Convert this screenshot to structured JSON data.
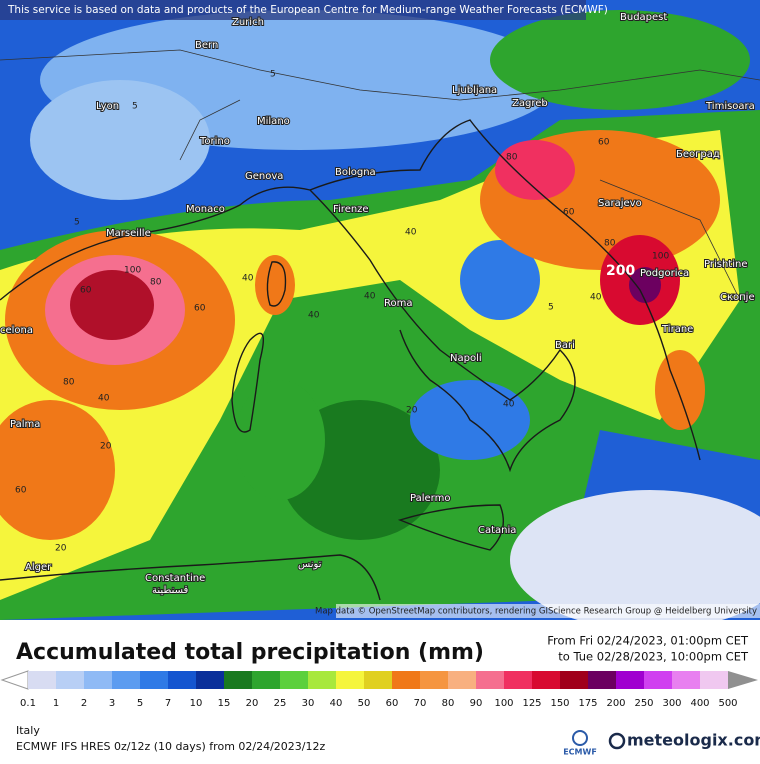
{
  "notice": "This service is based on data and products of the European Centre for Medium-range Weather Forecasts (ECMWF)",
  "map": {
    "cities": [
      "Zurich",
      "Budapest",
      "Bern",
      "Lyon",
      "Milano",
      "Ljubljana",
      "Zagreb",
      "Timisoara",
      "Torino",
      "Genova",
      "Bologna",
      "Београд",
      "Sarajevo",
      "Monaco",
      "Firenze",
      "Marseille",
      "Prishtine",
      "Podgorica",
      "Скопје",
      "Roma",
      "Tirane",
      "celona",
      "Napoli",
      "Bari",
      "Palma",
      "Palermo",
      "Catania",
      "Alger",
      "Constantine",
      "قسنطينة",
      "تونس"
    ],
    "contour_labels": [
      "200",
      "100",
      "80",
      "60",
      "80",
      "60",
      "40",
      "40",
      "60",
      "40",
      "40",
      "40",
      "80",
      "60",
      "60",
      "80",
      "100",
      "40",
      "20",
      "40",
      "5",
      "20",
      "20",
      "5",
      "5",
      "5"
    ],
    "attribution": "Map data © OpenStreetMap contributors, rendering GIScience Research Group @ Heidelberg University"
  },
  "title": "Accumulated total precipitation (mm)",
  "period": {
    "from": "From Fri 02/24/2023, 01:00pm CET",
    "to": "to Tue 02/28/2023, 10:00pm CET"
  },
  "legend": {
    "labels": [
      "0.1",
      "1",
      "2",
      "3",
      "5",
      "7",
      "10",
      "15",
      "20",
      "25",
      "30",
      "40",
      "50",
      "60",
      "70",
      "80",
      "90",
      "100",
      "125",
      "150",
      "175",
      "200",
      "250",
      "300",
      "400",
      "500"
    ],
    "colors": [
      "#d8dcf2",
      "#b8cff5",
      "#8fbaf5",
      "#5c9cf0",
      "#2f7ae6",
      "#1455d0",
      "#0a2f9a",
      "#197a1f",
      "#2ea52e",
      "#5cd03c",
      "#a8e83c",
      "#f5f53c",
      "#e0d020",
      "#f07818",
      "#f59540",
      "#f8b080",
      "#f56f8f",
      "#f03060",
      "#d80a30",
      "#a0001a",
      "#6c0060",
      "#a000d0",
      "#d040f0",
      "#e880f0",
      "#f0c8f0"
    ]
  },
  "region": "Italy",
  "model": "ECMWF IFS HRES 0z/12z (10 days) from  02/24/2023/12z",
  "logos": {
    "ecmwf": "ECMWF",
    "meteologix": "meteologix.com"
  }
}
